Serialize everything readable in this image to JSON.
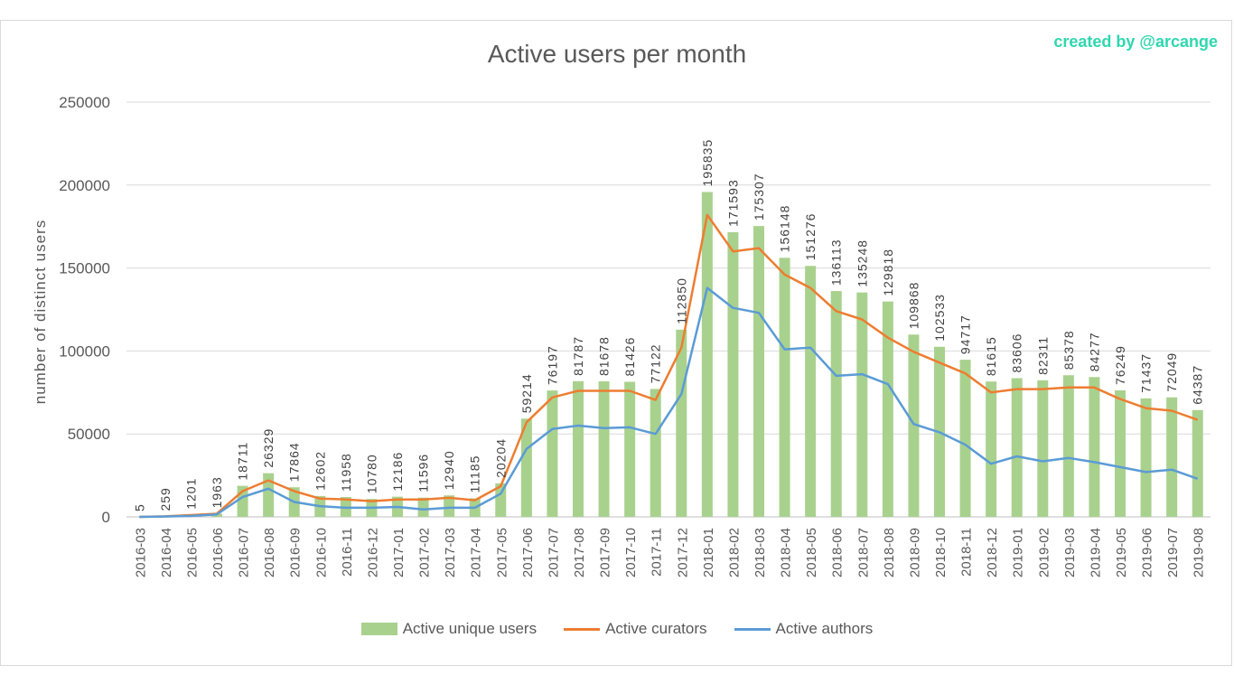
{
  "credit": "created by @arcange",
  "chart_data": {
    "type": "bar",
    "title": "Active users per month",
    "ylabel": "number of distinct users",
    "xlabel": "",
    "ylim": [
      0,
      250000
    ],
    "yticks": [
      0,
      50000,
      100000,
      150000,
      200000,
      250000
    ],
    "grid": true,
    "legend_position": "bottom",
    "categories": [
      "2016-03",
      "2016-04",
      "2016-05",
      "2016-06",
      "2016-07",
      "2016-08",
      "2016-09",
      "2016-10",
      "2016-11",
      "2016-12",
      "2017-01",
      "2017-02",
      "2017-03",
      "2017-04",
      "2017-05",
      "2017-06",
      "2017-07",
      "2017-08",
      "2017-09",
      "2017-10",
      "2017-11",
      "2017-12",
      "2018-01",
      "2018-02",
      "2018-03",
      "2018-04",
      "2018-05",
      "2018-06",
      "2018-07",
      "2018-08",
      "2018-09",
      "2018-10",
      "2018-11",
      "2018-12",
      "2019-01",
      "2019-02",
      "2019-03",
      "2019-04",
      "2019-05",
      "2019-06",
      "2019-07",
      "2019-08"
    ],
    "series": [
      {
        "name": "Active unique users",
        "kind": "bar",
        "color": "#a9d18e",
        "values": [
          5,
          259,
          1201,
          1963,
          18711,
          26329,
          17864,
          12602,
          11958,
          10780,
          12186,
          11596,
          12940,
          11185,
          20204,
          59214,
          76197,
          81787,
          81678,
          81426,
          77122,
          112850,
          195835,
          171593,
          175307,
          156148,
          151276,
          136113,
          135248,
          129818,
          109868,
          102533,
          94717,
          81615,
          83606,
          82311,
          85378,
          84277,
          76249,
          71437,
          72049,
          64387
        ]
      },
      {
        "name": "Active curators",
        "kind": "line",
        "color": "#ed7d31",
        "values": [
          5,
          300,
          1100,
          1900,
          15500,
          22000,
          15500,
          11000,
          10500,
          9500,
          10500,
          10500,
          11500,
          10000,
          18500,
          57000,
          72000,
          76000,
          76000,
          76000,
          70500,
          102000,
          182000,
          160000,
          162000,
          146000,
          138000,
          124000,
          119000,
          108000,
          99500,
          93000,
          86500,
          75000,
          77000,
          77000,
          78000,
          78000,
          71000,
          65500,
          64000,
          58500
        ]
      },
      {
        "name": "Active authors",
        "kind": "line",
        "color": "#5b9bd5",
        "values": [
          5,
          200,
          600,
          1500,
          12000,
          17000,
          9000,
          6500,
          5500,
          5500,
          6000,
          4500,
          5500,
          5500,
          14000,
          41000,
          53000,
          55000,
          53500,
          54000,
          50000,
          74000,
          138000,
          126000,
          123000,
          101000,
          102000,
          85000,
          86000,
          80000,
          56000,
          51000,
          43500,
          32000,
          36500,
          33500,
          35500,
          33000,
          30000,
          27000,
          28500,
          23000
        ]
      }
    ]
  }
}
